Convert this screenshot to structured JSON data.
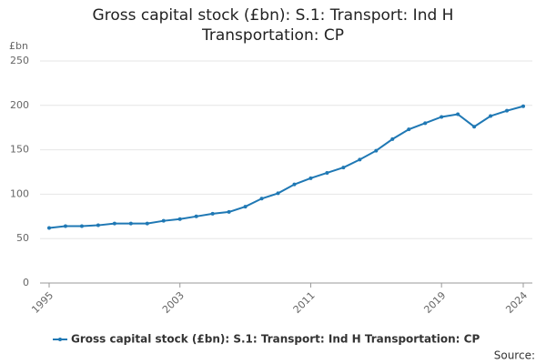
{
  "chart_data": {
    "type": "line",
    "title": "Gross capital stock (£bn): S.1: Transport: Ind H Transportation: CP",
    "y_label": "£bn",
    "x": [
      1995,
      1996,
      1997,
      1998,
      1999,
      2000,
      2001,
      2002,
      2003,
      2004,
      2005,
      2006,
      2007,
      2008,
      2009,
      2010,
      2011,
      2012,
      2013,
      2014,
      2015,
      2016,
      2017,
      2018,
      2019,
      2020,
      2021,
      2022,
      2023,
      2024
    ],
    "series": [
      {
        "name": "Gross capital stock (£bn): S.1: Transport: Ind H Transportation: CP",
        "color": "#1f78b4",
        "values": [
          62,
          64,
          64,
          65,
          67,
          67,
          67,
          70,
          72,
          75,
          78,
          80,
          86,
          95,
          101,
          111,
          118,
          124,
          130,
          139,
          149,
          162,
          173,
          180,
          187,
          190,
          176,
          188,
          194,
          199
        ]
      }
    ],
    "xlim": [
      1995,
      2024
    ],
    "xticks": [
      1995,
      2003,
      2011,
      2019,
      2024
    ],
    "ylim": [
      0,
      250
    ],
    "yticks": [
      0,
      50,
      100,
      150,
      200,
      250
    ],
    "grid": true,
    "source": "Source:"
  }
}
